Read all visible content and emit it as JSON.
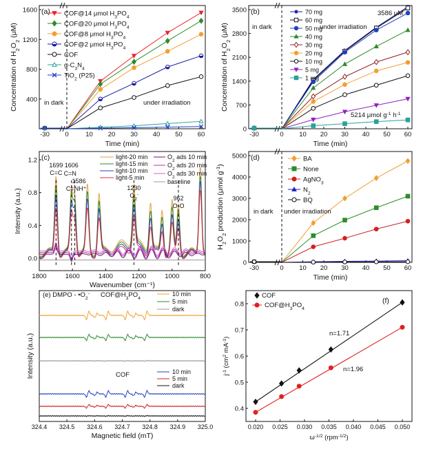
{
  "chart_data": [
    {
      "panel": "(a)",
      "type": "line",
      "xlabel": "Time (min)",
      "ylabel": "Concentration of H2O2 (μM)",
      "xlim": [
        -30,
        60
      ],
      "ylim": [
        0,
        1600
      ],
      "xticks": [
        "-30",
        "0",
        "10",
        "20",
        "30",
        "40",
        "50",
        "60"
      ],
      "yticks": [
        "400",
        "800",
        "1200",
        "1600"
      ],
      "x": [
        0,
        15,
        30,
        45,
        60
      ],
      "annotations": [
        "in dark",
        "under irradiation"
      ],
      "series": [
        {
          "name": "COF@14 μmol H3PO4",
          "color": "#e8242a",
          "marker": "tri-down",
          "values": [
            0,
            640,
            980,
            1290,
            1560
          ]
        },
        {
          "name": "COF@20 μmol H3PO4",
          "color": "#2e8b2e",
          "marker": "diamond",
          "values": [
            0,
            600,
            900,
            1180,
            1450
          ]
        },
        {
          "name": "COF@8 μmol H3PO4",
          "color": "#f0a030",
          "marker": "circle",
          "values": [
            0,
            530,
            820,
            1040,
            1270
          ]
        },
        {
          "name": "COF@2 μmol H3PO4",
          "color": "#1a1aa0",
          "marker": "circle-half",
          "values": [
            0,
            400,
            610,
            830,
            980
          ]
        },
        {
          "name": "COF",
          "color": "#111111",
          "marker": "circle-open",
          "values": [
            0,
            280,
            420,
            580,
            700
          ]
        },
        {
          "name": "g-C3N4",
          "color": "#2aa198",
          "marker": "tri-open",
          "values": [
            0,
            20,
            40,
            70,
            100
          ]
        },
        {
          "name": "TiO2 (P25)",
          "color": "#2040c0",
          "marker": "x",
          "values": [
            0,
            8,
            15,
            22,
            30
          ]
        }
      ]
    },
    {
      "panel": "(b)",
      "type": "line",
      "xlabel": "Time (min)",
      "ylabel": "Concentration of H2O2 (μM)",
      "xlim": [
        -30,
        60
      ],
      "ylim": [
        0,
        3500
      ],
      "xticks": [
        "-30",
        "0",
        "10",
        "20",
        "30",
        "40",
        "50",
        "60"
      ],
      "yticks": [
        "0",
        "700",
        "1400",
        "2100",
        "2800",
        "3500"
      ],
      "x": [
        0,
        15,
        30,
        45,
        60
      ],
      "annotations": [
        "in dark",
        "under irradiation",
        "3586 μM",
        "5214 μmol g⁻¹ h⁻¹"
      ],
      "series": [
        {
          "name": "70 mg",
          "color": "#1a1aa0",
          "marker": "star",
          "values": [
            0,
            1450,
            2300,
            2980,
            3586
          ]
        },
        {
          "name": "60 mg",
          "color": "#111111",
          "marker": "square-open",
          "values": [
            0,
            1420,
            2280,
            2960,
            3550
          ]
        },
        {
          "name": "50 mg",
          "color": "#2040c0",
          "marker": "circle",
          "values": [
            0,
            1380,
            2250,
            2900,
            3400
          ]
        },
        {
          "name": "40 mg",
          "color": "#2e8b2e",
          "marker": "tri-up",
          "values": [
            0,
            1200,
            1900,
            2420,
            2900
          ]
        },
        {
          "name": "30 mg",
          "color": "#8b2020",
          "marker": "diamond-open",
          "values": [
            0,
            950,
            1530,
            1960,
            2250
          ]
        },
        {
          "name": "20 mg",
          "color": "#f0a030",
          "marker": "circle",
          "values": [
            0,
            800,
            1300,
            1700,
            1950
          ]
        },
        {
          "name": "10 mg",
          "color": "#111111",
          "marker": "circle-open",
          "values": [
            0,
            600,
            1000,
            1280,
            1560
          ]
        },
        {
          "name": "5 mg",
          "color": "#9020c0",
          "marker": "tri-down",
          "values": [
            0,
            270,
            500,
            690,
            880
          ]
        },
        {
          "name": "1 mg",
          "color": "#2aa198",
          "marker": "square",
          "values": [
            0,
            90,
            150,
            210,
            260
          ]
        }
      ]
    },
    {
      "panel": "(c)",
      "type": "line",
      "xlabel": "Wavenumber (cm⁻¹)",
      "ylabel": "Intensity (a.u.)",
      "xlim": [
        1800,
        800
      ],
      "ylim": [
        -0.15,
        1.3
      ],
      "xticks": [
        "1800",
        "1600",
        "1400",
        "1200",
        "1000",
        "800"
      ],
      "yticks": [
        "0.0",
        "0.4",
        "0.8",
        "1.2"
      ],
      "legend": [
        "light-20 min",
        "light-15 min",
        "light-10 min",
        "light-5 min",
        "O2 ads 10 min",
        "O2 ads 20 min",
        "O2 ads 30 min",
        "baseline"
      ],
      "peak_labels": [
        "1699",
        "C=C",
        "1606",
        "C=N",
        "1586",
        "C=NH⁺",
        "1230",
        "O2⁻",
        "962",
        "O-O"
      ],
      "series": [
        {
          "name": "light-20 min",
          "color": "#e0a040",
          "peaks": [
            [
              1699,
              0.95
            ],
            [
              1606,
              0.75
            ],
            [
              1586,
              0.7
            ],
            [
              1510,
              0.8
            ],
            [
              1440,
              0.7
            ],
            [
              1230,
              0.72
            ],
            [
              1130,
              0.58
            ],
            [
              1060,
              0.52
            ],
            [
              1000,
              0.6
            ],
            [
              962,
              0.58
            ],
            [
              830,
              1.1
            ]
          ]
        },
        {
          "name": "light-15 min",
          "color": "#2e8b2e",
          "peaks": [
            [
              1699,
              0.85
            ],
            [
              1606,
              0.68
            ],
            [
              1586,
              0.64
            ],
            [
              1510,
              0.72
            ],
            [
              1440,
              0.62
            ],
            [
              1230,
              0.62
            ],
            [
              1130,
              0.5
            ],
            [
              1060,
              0.45
            ],
            [
              1000,
              0.52
            ],
            [
              962,
              0.5
            ],
            [
              830,
              1.0
            ]
          ]
        },
        {
          "name": "light-10 min",
          "color": "#2040c0",
          "peaks": [
            [
              1699,
              0.75
            ],
            [
              1606,
              0.6
            ],
            [
              1586,
              0.56
            ],
            [
              1510,
              0.64
            ],
            [
              1440,
              0.54
            ],
            [
              1230,
              0.53
            ],
            [
              1130,
              0.43
            ],
            [
              1060,
              0.38
            ],
            [
              1000,
              0.44
            ],
            [
              962,
              0.42
            ],
            [
              830,
              0.95
            ]
          ]
        },
        {
          "name": "light-5 min",
          "color": "#e03030",
          "peaks": [
            [
              1699,
              0.6
            ],
            [
              1606,
              0.5
            ],
            [
              1586,
              0.46
            ],
            [
              1510,
              0.54
            ],
            [
              1440,
              0.44
            ],
            [
              1230,
              0.42
            ],
            [
              1130,
              0.34
            ],
            [
              1060,
              0.3
            ],
            [
              1000,
              0.36
            ],
            [
              962,
              0.33
            ],
            [
              830,
              0.85
            ]
          ]
        }
      ]
    },
    {
      "panel": "(d)",
      "type": "line",
      "xlabel": "Time (min)",
      "ylabel": "H2O2 production (μmol g⁻¹)",
      "xlim": [
        -30,
        60
      ],
      "ylim": [
        0,
        5000
      ],
      "xticks": [
        "-30",
        "0",
        "10",
        "20",
        "30",
        "40",
        "50",
        "60"
      ],
      "yticks": [
        "0",
        "1000",
        "2000",
        "3000",
        "4000",
        "5000"
      ],
      "x": [
        0,
        15,
        30,
        45,
        60
      ],
      "annotations": [
        "in dark",
        "under irradiation"
      ],
      "series": [
        {
          "name": "BA",
          "color": "#f0a030",
          "marker": "diamond",
          "values": [
            0,
            1850,
            3000,
            3950,
            4750
          ]
        },
        {
          "name": "None",
          "color": "#2e8b2e",
          "marker": "square",
          "values": [
            0,
            1250,
            1980,
            2560,
            3100
          ]
        },
        {
          "name": "AgNO3",
          "color": "#d02020",
          "marker": "circle",
          "values": [
            0,
            730,
            1130,
            1560,
            1930
          ]
        },
        {
          "name": "N2",
          "color": "#2020c0",
          "marker": "tri-up",
          "values": [
            0,
            30,
            50,
            60,
            80
          ]
        },
        {
          "name": "BQ",
          "color": "#111111",
          "marker": "circle-open",
          "values": [
            0,
            10,
            20,
            25,
            30
          ]
        }
      ]
    },
    {
      "panel": "(e)",
      "type": "line",
      "xlabel": "Magnetic field (mT)",
      "ylabel": "Intensity (a.u.)",
      "xlim": [
        324.4,
        325.0
      ],
      "xticks": [
        "324.4",
        "324.5",
        "324.6",
        "324.7",
        "324.8",
        "324.9",
        "325.0"
      ],
      "annotations": [
        "DMPO - •O2⁻",
        "COF@H3PO4",
        "COF"
      ],
      "series": [
        {
          "name": "COF@H3PO4 10 min",
          "color": "#f0a030",
          "amplitude": 1.0
        },
        {
          "name": "COF@H3PO4 5 min",
          "color": "#2e8b2e",
          "amplitude": 0.7
        },
        {
          "name": "COF@H3PO4 dark",
          "color": "#999999",
          "amplitude": 0.05
        },
        {
          "name": "COF 10 min",
          "color": "#2040c0",
          "amplitude": 0.75
        },
        {
          "name": "COF 5 min",
          "color": "#d02020",
          "amplitude": 0.4
        },
        {
          "name": "COF dark",
          "color": "#111111",
          "amplitude": 0.05
        }
      ]
    },
    {
      "panel": "(f)",
      "type": "scatter",
      "xlabel": "ω^-1/2 (rpm^-1/2)",
      "ylabel": "j⁻¹ (cm² mA⁻¹)",
      "xlim": [
        0.02,
        0.05
      ],
      "ylim": [
        0.35,
        0.85
      ],
      "xticks": [
        "0.020",
        "0.025",
        "0.030",
        "0.035",
        "0.040",
        "0.045",
        "0.050"
      ],
      "yticks": [
        "0.4",
        "0.5",
        "0.6",
        "0.7",
        "0.8"
      ],
      "annotations": [
        "n=1.71",
        "n=1.96"
      ],
      "series": [
        {
          "name": "COF",
          "color": "#111111",
          "marker": "diamond",
          "x": [
            0.02,
            0.0253,
            0.0289,
            0.0354,
            0.05
          ],
          "values": [
            0.425,
            0.495,
            0.545,
            0.625,
            0.805
          ]
        },
        {
          "name": "COF@H3PO4",
          "color": "#e02020",
          "marker": "circle",
          "x": [
            0.02,
            0.0253,
            0.0289,
            0.0354,
            0.05
          ],
          "values": [
            0.385,
            0.445,
            0.485,
            0.555,
            0.71
          ]
        }
      ]
    }
  ]
}
